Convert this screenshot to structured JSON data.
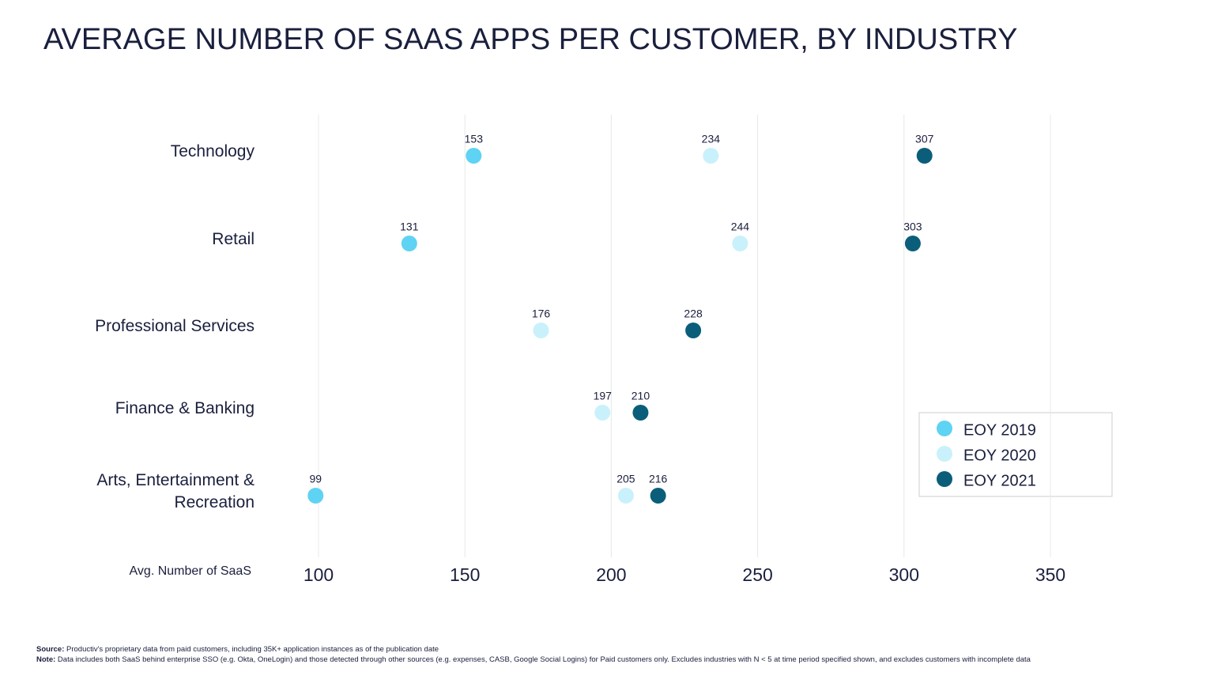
{
  "chart_data": {
    "type": "dot",
    "title": "AVERAGE NUMBER OF SAAS APPS PER CUSTOMER, BY INDUSTRY",
    "categories": [
      "Technology",
      "Retail",
      "Professional Services",
      "Finance & Banking",
      "Arts, Entertainment & Recreation"
    ],
    "series": [
      {
        "name": "EOY 2019",
        "color": "#5fd3f3",
        "values": [
          153,
          131,
          null,
          null,
          99
        ]
      },
      {
        "name": "EOY 2020",
        "color": "#c9f1fb",
        "values": [
          234,
          244,
          176,
          197,
          205
        ]
      },
      {
        "name": "EOY 2021",
        "color": "#0b5e7a",
        "values": [
          307,
          303,
          228,
          210,
          216
        ]
      }
    ],
    "x_label": "Avg. Number of SaaS",
    "xlim": [
      100,
      350
    ],
    "xticks": [
      100,
      150,
      200,
      250,
      300,
      350
    ],
    "grid": true,
    "legend": "right"
  },
  "footer": {
    "source_label": "Source:",
    "source": "Productiv's proprietary data from paid customers, including 35K+ application instances as of the publication date",
    "note_label": "Note:",
    "note": "Data includes both SaaS behind enterprise SSO (e.g. Okta, OneLogin) and those detected through other sources (e.g. expenses, CASB, Google Social Logins) for Paid customers only. Excludes industries with N < 5 at time period specified shown, and excludes customers with incomplete data"
  }
}
